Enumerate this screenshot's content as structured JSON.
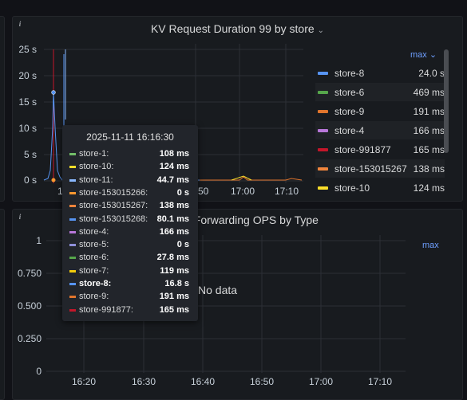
{
  "top_panel": {
    "title": "KV Request Duration 99 by store",
    "y_labels": [
      "25 s",
      "20 s",
      "15 s",
      "10 s",
      "5 s",
      "0 s"
    ],
    "x_labels": [
      "1",
      "50",
      "17:00",
      "17:10"
    ],
    "legend_header": "max",
    "legend": [
      {
        "name": "store-8",
        "value": "24.0 s",
        "color": "#5794f2"
      },
      {
        "name": "store-6",
        "value": "469 ms",
        "color": "#56a64b"
      },
      {
        "name": "store-9",
        "value": "191 ms",
        "color": "#e0752d"
      },
      {
        "name": "store-4",
        "value": "166 ms",
        "color": "#b877d9"
      },
      {
        "name": "store-991877",
        "value": "165 ms",
        "color": "#c4162a"
      },
      {
        "name": "store-153015267",
        "value": "138 ms",
        "color": "#ef843c"
      },
      {
        "name": "store-10",
        "value": "124 ms",
        "color": "#fade2a"
      }
    ]
  },
  "tooltip": {
    "time": "2025-11-11 16:16:30",
    "rows": [
      {
        "name": "store-1:",
        "value": "108 ms",
        "color": "#73bf69",
        "bold": false
      },
      {
        "name": "store-10:",
        "value": "124 ms",
        "color": "#fade2a",
        "bold": false
      },
      {
        "name": "store-11:",
        "value": "44.7 ms",
        "color": "#8ab8ff",
        "bold": false
      },
      {
        "name": "store-153015266:",
        "value": "0 s",
        "color": "#ff9830",
        "bold": false
      },
      {
        "name": "store-153015267:",
        "value": "138 ms",
        "color": "#ef843c",
        "bold": false
      },
      {
        "name": "store-153015268:",
        "value": "80.1 ms",
        "color": "#5794f2",
        "bold": false
      },
      {
        "name": "store-4:",
        "value": "166 ms",
        "color": "#b877d9",
        "bold": false
      },
      {
        "name": "store-5:",
        "value": "0 s",
        "color": "#8f8fd9",
        "bold": false
      },
      {
        "name": "store-6:",
        "value": "27.8 ms",
        "color": "#56a64b",
        "bold": false
      },
      {
        "name": "store-7:",
        "value": "119 ms",
        "color": "#f2cc0c",
        "bold": false
      },
      {
        "name": "store-8:",
        "value": "16.8 s",
        "color": "#5794f2",
        "bold": true
      },
      {
        "name": "store-9:",
        "value": "191 ms",
        "color": "#e0752d",
        "bold": false
      },
      {
        "name": "store-991877:",
        "value": "165 ms",
        "color": "#c4162a",
        "bold": false
      }
    ]
  },
  "bottom_panel": {
    "title": "st Forwarding OPS by Type",
    "y_labels": [
      "1",
      "0.750",
      "0.500",
      "0.250",
      "0"
    ],
    "x_labels": [
      "16:20",
      "16:30",
      "16:40",
      "16:50",
      "17:00",
      "17:10"
    ],
    "legend_header": "max",
    "no_data": "No data"
  },
  "colors": {
    "background": "#111217",
    "panel": "#181b1f",
    "grid": "#2c2f35",
    "accent": "#6e9fff"
  }
}
